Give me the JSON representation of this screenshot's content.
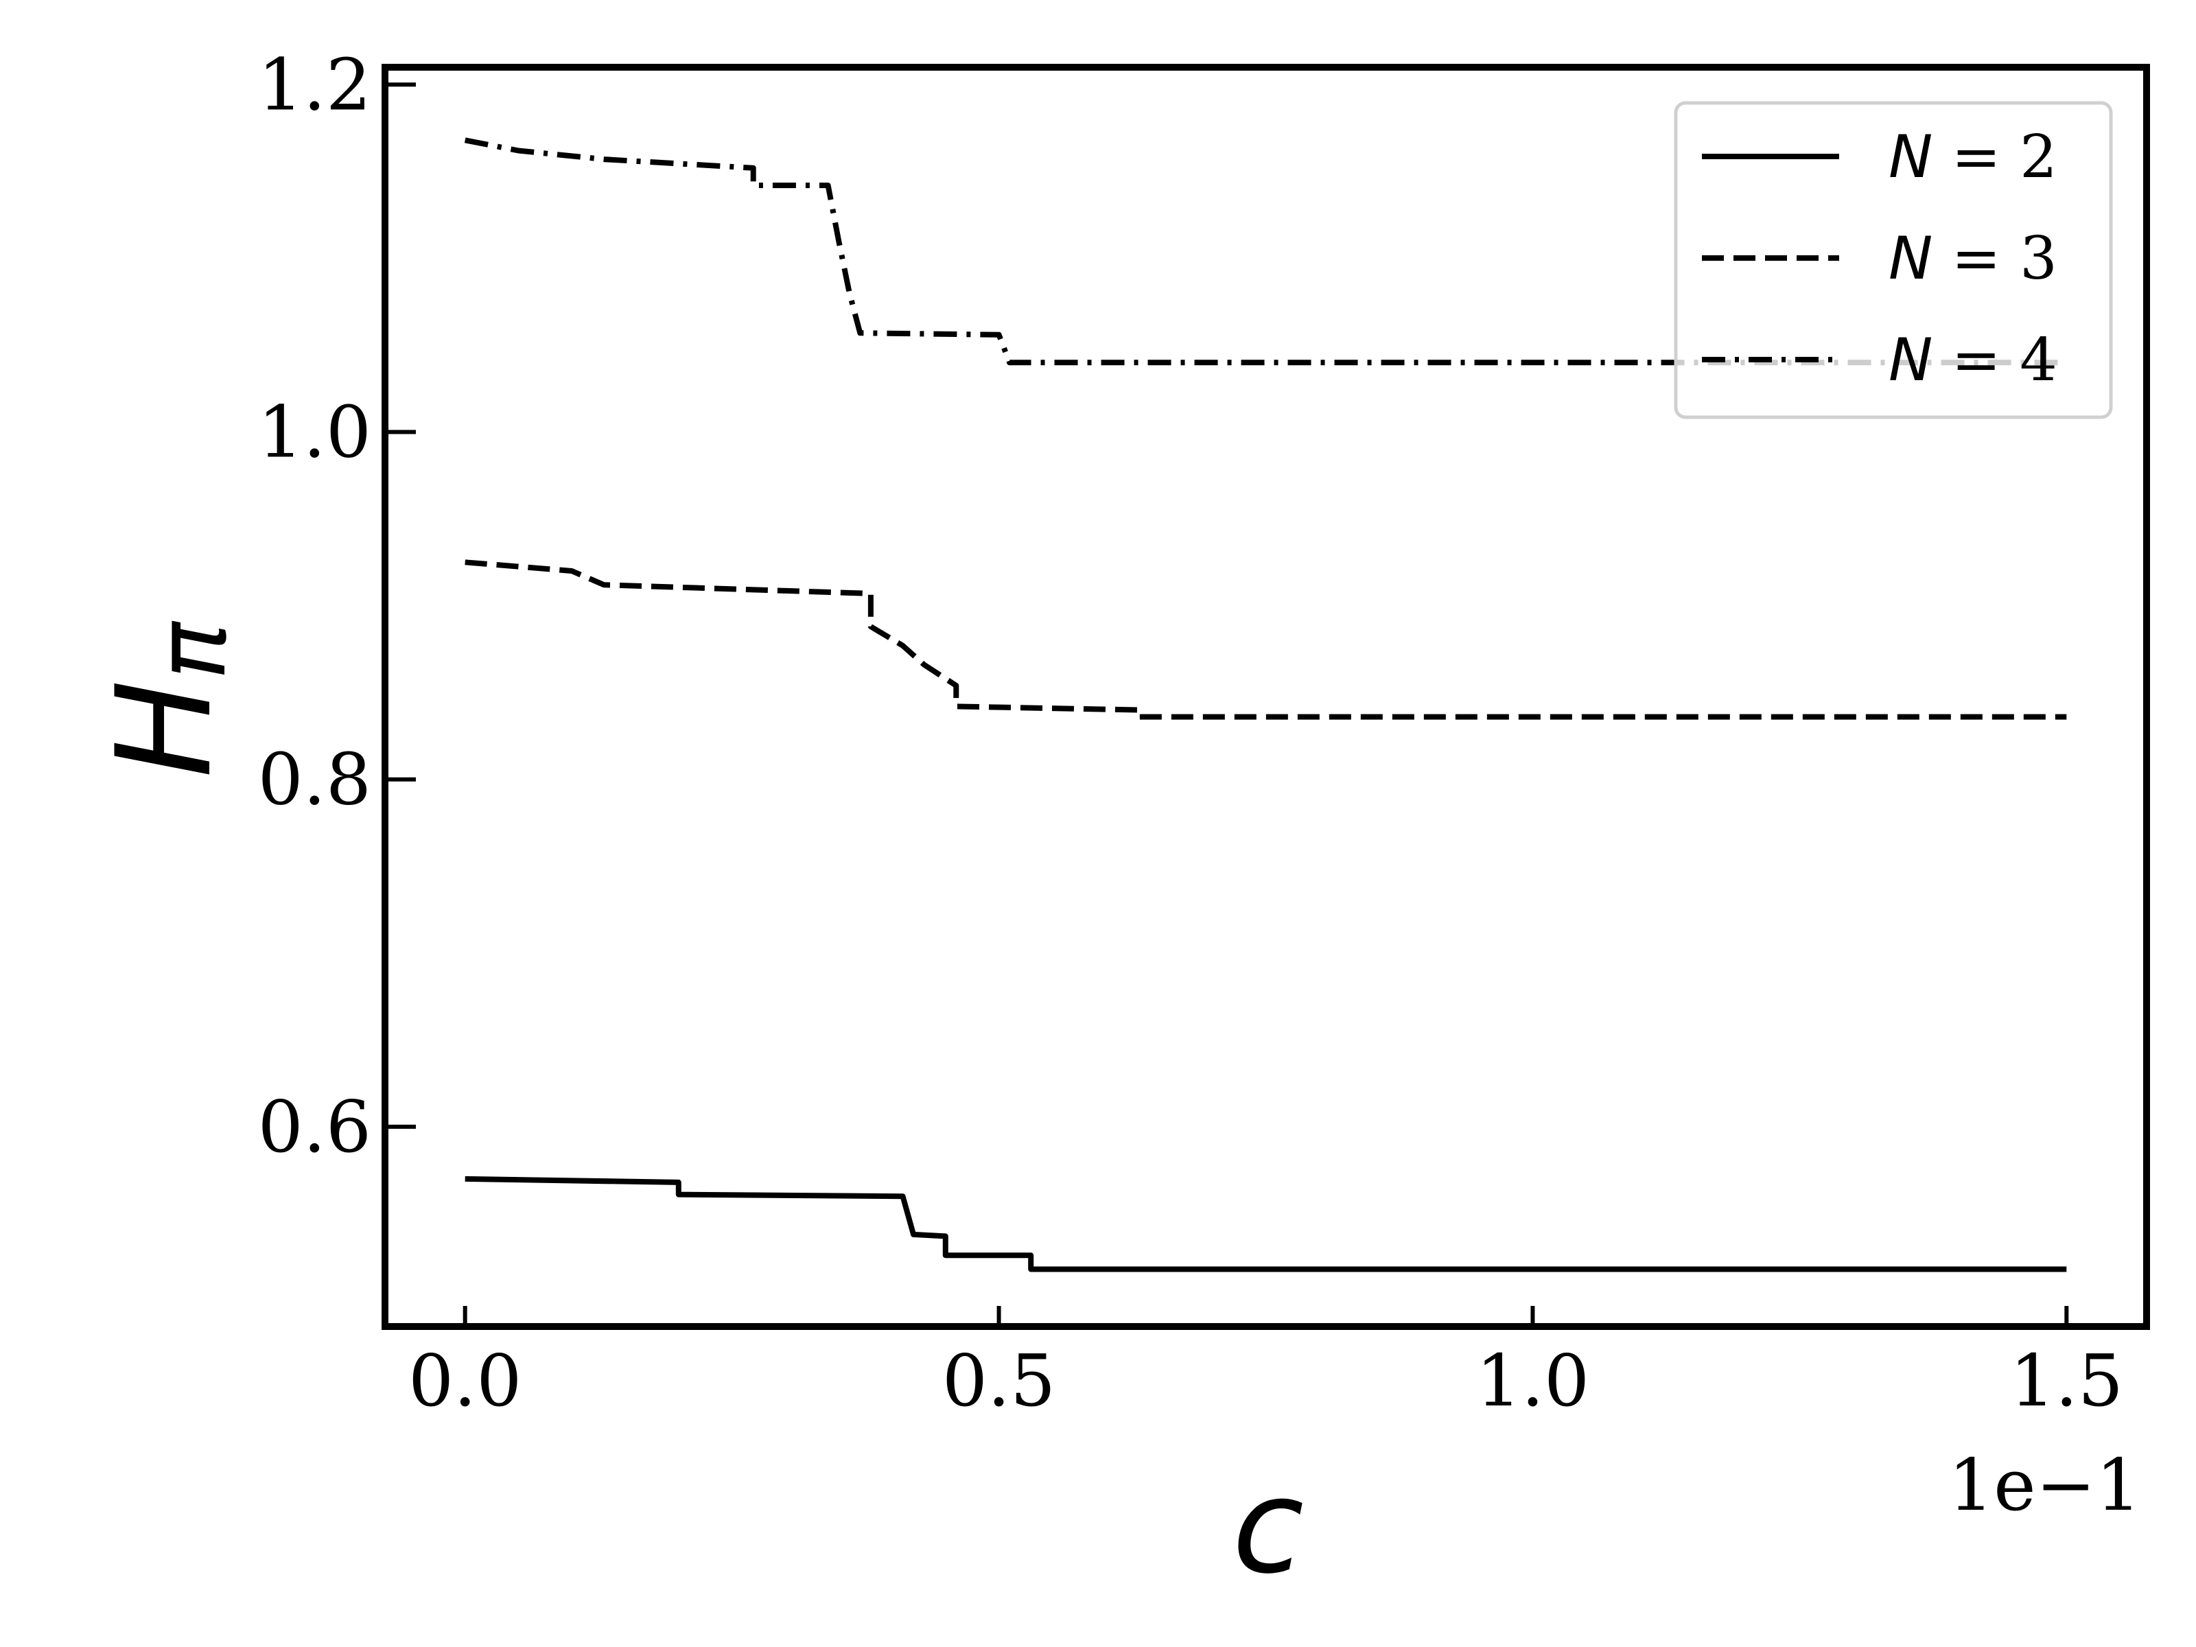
{
  "chart_data": {
    "type": "line",
    "xlabel": "c",
    "ylabel_main": "H",
    "ylabel_sub": "π",
    "x_offset_label": "1e−1",
    "xlim": [
      -0.075,
      1.575
    ],
    "ylim": [
      0.485,
      1.21
    ],
    "x_ticks": [
      0.0,
      0.5,
      1.0,
      1.5
    ],
    "x_tick_labels": [
      "0.0",
      "0.5",
      "1.0",
      "1.5"
    ],
    "y_ticks": [
      0.6,
      0.8,
      1.0,
      1.2
    ],
    "y_tick_labels": [
      "0.6",
      "0.8",
      "1.0",
      "1.2"
    ],
    "grid": false,
    "legend_position": "top-right",
    "series": [
      {
        "name": "N = 2",
        "legend_var": "N",
        "legend_eq": " =  2",
        "style": "solid",
        "color": "#000000",
        "points": [
          [
            0.0,
            0.57
          ],
          [
            0.2,
            0.568
          ],
          [
            0.2,
            0.561
          ],
          [
            0.41,
            0.56
          ],
          [
            0.42,
            0.538
          ],
          [
            0.45,
            0.537
          ],
          [
            0.45,
            0.526
          ],
          [
            0.53,
            0.526
          ],
          [
            0.53,
            0.518
          ],
          [
            1.5,
            0.518
          ]
        ]
      },
      {
        "name": "N = 3",
        "legend_var": "N",
        "legend_eq": " =  3",
        "style": "dashed",
        "color": "#000000",
        "points": [
          [
            0.0,
            0.925
          ],
          [
            0.1,
            0.92
          ],
          [
            0.13,
            0.912
          ],
          [
            0.38,
            0.907
          ],
          [
            0.38,
            0.888
          ],
          [
            0.41,
            0.877
          ],
          [
            0.43,
            0.866
          ],
          [
            0.46,
            0.854
          ],
          [
            0.46,
            0.842
          ],
          [
            0.63,
            0.84
          ],
          [
            0.63,
            0.836
          ],
          [
            1.5,
            0.836
          ]
        ]
      },
      {
        "name": "N = 4",
        "legend_var": "N",
        "legend_eq": " =  4",
        "style": "dashdot",
        "color": "#000000",
        "points": [
          [
            0.0,
            1.168
          ],
          [
            0.05,
            1.162
          ],
          [
            0.13,
            1.157
          ],
          [
            0.27,
            1.152
          ],
          [
            0.27,
            1.142
          ],
          [
            0.34,
            1.142
          ],
          [
            0.35,
            1.11
          ],
          [
            0.36,
            1.08
          ],
          [
            0.37,
            1.057
          ],
          [
            0.5,
            1.056
          ],
          [
            0.51,
            1.04
          ],
          [
            1.5,
            1.04
          ]
        ]
      }
    ]
  }
}
